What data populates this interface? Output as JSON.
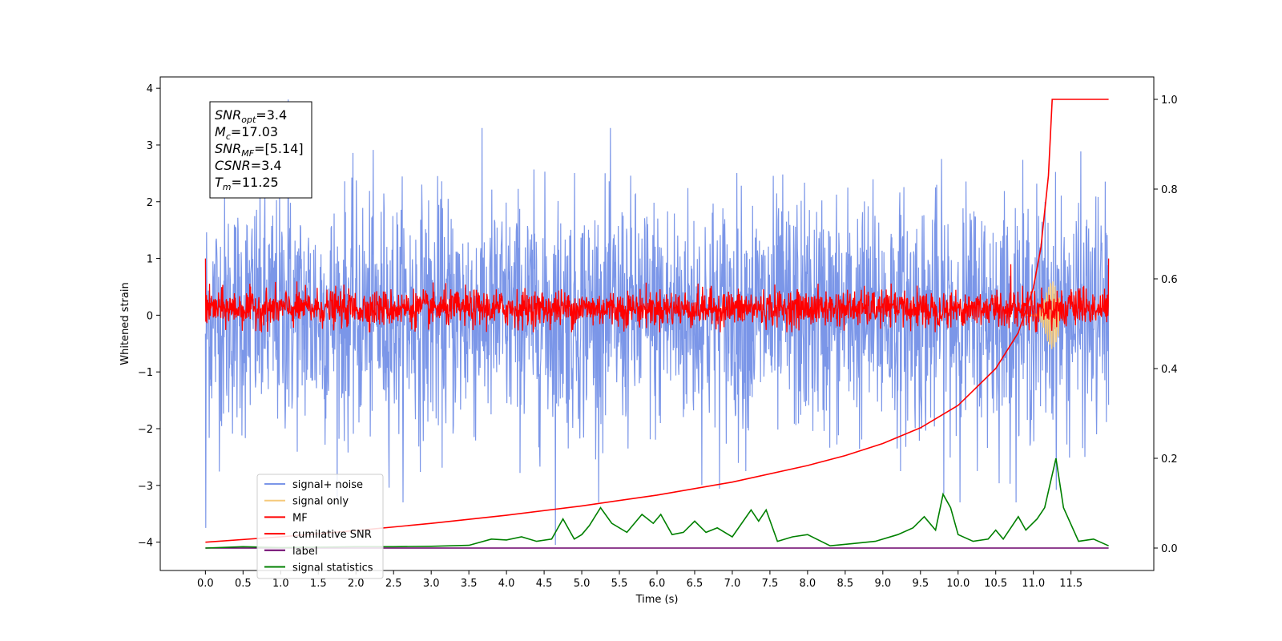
{
  "chart_data": {
    "type": "line",
    "title": "",
    "xlabel": "Time (s)",
    "ylabel": "Whitened strain",
    "xlim": [
      -0.6,
      12.6
    ],
    "ylim": [
      -4.5,
      4.2
    ],
    "y2lim": [
      -0.05,
      1.05
    ],
    "x_ticks": [
      "0.0",
      "0.5",
      "1.0",
      "1.5",
      "2.0",
      "2.5",
      "3.0",
      "3.5",
      "4.0",
      "4.5",
      "5.0",
      "5.5",
      "6.0",
      "6.5",
      "7.0",
      "7.5",
      "8.0",
      "8.5",
      "9.0",
      "9.5",
      "10.0",
      "10.5",
      "11.0",
      "11.5"
    ],
    "y_ticks": [
      "4",
      "3",
      "2",
      "1",
      "0",
      "−1",
      "−2",
      "−3",
      "−4"
    ],
    "y2_ticks": [
      "1.0",
      "0.8",
      "0.6",
      "0.4",
      "0.2",
      "0.0"
    ],
    "grid": false,
    "legend_position": "lower-left",
    "info_box": {
      "lines": [
        {
          "symbol": "SNR",
          "sub": "opt",
          "value": "=3.4"
        },
        {
          "symbol": "M",
          "sub": "c",
          "value": "=17.03"
        },
        {
          "symbol": "SNR",
          "sub": "MF",
          "value": "=[5.14]"
        },
        {
          "symbol": "CSNR",
          "sub": "",
          "value": "=3.4"
        },
        {
          "symbol": "T",
          "sub": "m",
          "value": "=11.25"
        }
      ]
    },
    "series": [
      {
        "name": "signal+ noise",
        "color": "#7b96e8",
        "axis": "left",
        "style": "noise",
        "description_values": {
          "x_range": [
            0.0,
            12.0
          ],
          "band": [
            -2.3,
            2.3
          ],
          "peaks": [
            3.8,
            -4.1
          ]
        }
      },
      {
        "name": "signal only",
        "color": "#f5c97a",
        "axis": "left",
        "style": "chirp",
        "description_values": {
          "peak_time": 11.25,
          "peak_amplitude": 0.6
        }
      },
      {
        "name": "MF",
        "color": "#ff0000",
        "axis": "left",
        "style": "noise",
        "description_values": {
          "x_range": [
            0.0,
            12.0
          ],
          "band": [
            -0.3,
            0.6
          ]
        }
      },
      {
        "name": "cumilative SNR",
        "color": "#ff0000",
        "axis": "right",
        "x": [
          0.0,
          1.0,
          2.0,
          3.0,
          4.0,
          5.0,
          6.0,
          7.0,
          8.0,
          8.5,
          9.0,
          9.5,
          10.0,
          10.5,
          10.8,
          11.0,
          11.1,
          11.2,
          11.25,
          11.3,
          12.0
        ],
        "values": [
          0.013,
          0.025,
          0.039,
          0.055,
          0.073,
          0.094,
          0.118,
          0.147,
          0.184,
          0.206,
          0.233,
          0.268,
          0.318,
          0.4,
          0.48,
          0.58,
          0.67,
          0.83,
          1.0,
          1.0,
          1.0
        ]
      },
      {
        "name": "label",
        "color": "#6b006b",
        "axis": "right",
        "x": [
          0.0,
          12.0
        ],
        "values": [
          0.0,
          0.0
        ]
      },
      {
        "name": "signal statistics",
        "color": "#008000",
        "axis": "right",
        "x": [
          0.0,
          0.5,
          1.0,
          1.5,
          2.0,
          2.5,
          3.0,
          3.5,
          3.8,
          4.0,
          4.2,
          4.4,
          4.6,
          4.75,
          4.9,
          5.0,
          5.1,
          5.25,
          5.4,
          5.6,
          5.8,
          5.95,
          6.05,
          6.2,
          6.35,
          6.5,
          6.65,
          6.8,
          7.0,
          7.25,
          7.35,
          7.45,
          7.6,
          7.8,
          8.0,
          8.3,
          8.6,
          8.9,
          9.2,
          9.4,
          9.55,
          9.7,
          9.8,
          9.9,
          10.0,
          10.2,
          10.4,
          10.5,
          10.6,
          10.8,
          10.9,
          11.05,
          11.15,
          11.3,
          11.4,
          11.6,
          11.8,
          12.0
        ],
        "values": [
          0.0,
          0.003,
          0.001,
          0.002,
          0.003,
          0.003,
          0.004,
          0.006,
          0.02,
          0.018,
          0.025,
          0.015,
          0.02,
          0.065,
          0.02,
          0.03,
          0.05,
          0.09,
          0.055,
          0.035,
          0.075,
          0.055,
          0.075,
          0.03,
          0.035,
          0.06,
          0.035,
          0.045,
          0.025,
          0.085,
          0.06,
          0.085,
          0.015,
          0.025,
          0.03,
          0.005,
          0.01,
          0.015,
          0.03,
          0.045,
          0.07,
          0.04,
          0.12,
          0.09,
          0.03,
          0.015,
          0.02,
          0.04,
          0.02,
          0.07,
          0.04,
          0.065,
          0.09,
          0.2,
          0.09,
          0.015,
          0.02,
          0.005
        ]
      }
    ]
  }
}
